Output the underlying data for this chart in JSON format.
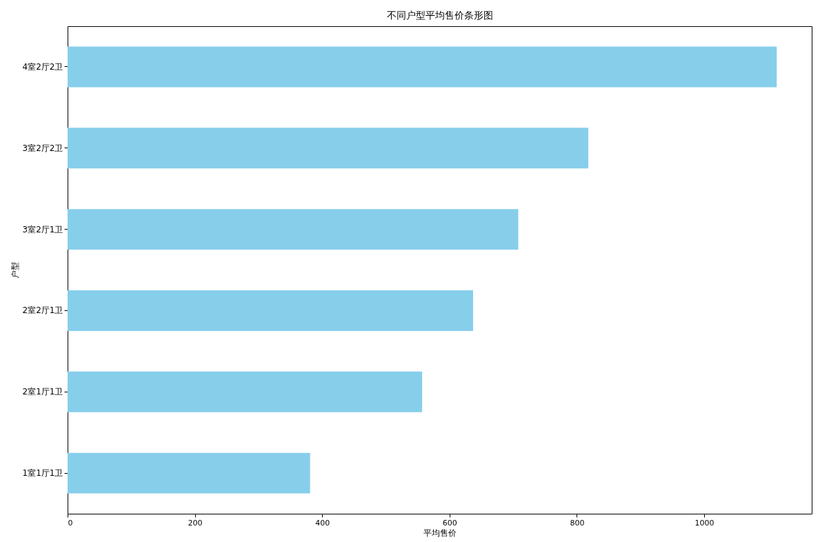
{
  "chart_data": {
    "type": "bar",
    "orientation": "horizontal",
    "title": "不同户型平均售价条形图",
    "xlabel": "平均售价",
    "ylabel": "户型",
    "categories": [
      "4室2厅2卫",
      "3室2厅2卫",
      "3室2厅1卫",
      "2室2厅1卫",
      "2室1厅1卫",
      "1室1厅1卫"
    ],
    "values": [
      1114,
      818,
      708,
      637,
      557,
      381
    ],
    "color": "#87ceeb",
    "xlim": [
      0,
      1169
    ],
    "xticks": [
      0,
      200,
      400,
      600,
      800,
      1000
    ]
  }
}
